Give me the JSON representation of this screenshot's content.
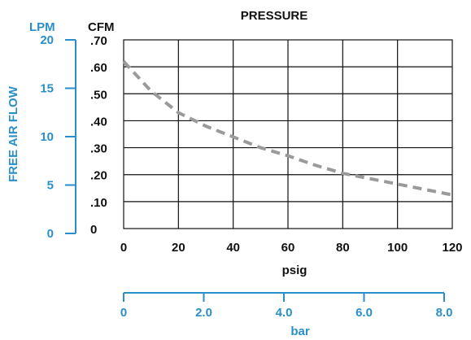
{
  "chart_data": {
    "type": "line",
    "title": "PRESSURE",
    "xlabel": "psig",
    "xlim": [
      0,
      120
    ],
    "x_ticks": [
      "0",
      "20",
      "40",
      "60",
      "80",
      "100",
      "120"
    ],
    "ylabel": "CFM",
    "ylim": [
      0,
      0.7
    ],
    "y_ticks": [
      "0",
      ".10",
      ".20",
      ".30",
      ".40",
      ".50",
      ".60",
      ".70"
    ],
    "secondary_y": {
      "label": "FREE AIR FLOW",
      "unit": "LPM",
      "ticks": [
        "0",
        "5",
        "10",
        "15",
        "20"
      ],
      "ylim": [
        0,
        20
      ]
    },
    "secondary_x": {
      "label": "bar",
      "ticks": [
        "0",
        "2.0",
        "4.0",
        "6.0",
        "8.0"
      ],
      "xlim": [
        0,
        8.0
      ]
    },
    "grid": true,
    "series": [
      {
        "line_style": "dashed",
        "x": [
          0,
          10,
          20,
          30,
          40,
          50,
          60,
          70,
          80,
          90,
          100,
          110,
          120
        ],
        "y": [
          0.62,
          0.51,
          0.43,
          0.38,
          0.34,
          0.3,
          0.27,
          0.235,
          0.205,
          0.185,
          0.165,
          0.145,
          0.125
        ]
      }
    ],
    "colors": {
      "grid": "#111111",
      "series": "#9a9a9a",
      "accent": "#2a8fc9",
      "text": "#111111"
    }
  }
}
